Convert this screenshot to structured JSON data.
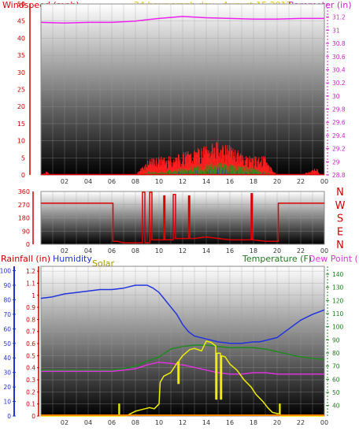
{
  "colors": {
    "wind": "#dd0000",
    "gust": "#ff2020",
    "wind_avg": "#1a9a1a",
    "wind_low": "#2020cc",
    "barometer": "#ee22ee",
    "title": "#e8c800",
    "direction": "#dd0000",
    "humidity": "#2233dd",
    "temperature": "#1f8a1f",
    "dewpoint": "#dd33dd",
    "solar": "#eeee00",
    "rainfall": "#cc0000",
    "rain_line": "#ff8800",
    "axis_blue": "#2233cc"
  },
  "chart_data": [
    {
      "type": "line",
      "title": "24 hour graph day - August 15 2017",
      "ylabel_left": "Windspeed (mph)",
      "ylabel_right": "Barometer (in)",
      "x_ticks": [
        "02",
        "04",
        "06",
        "08",
        "10",
        "12",
        "14",
        "16",
        "18",
        "20",
        "22",
        "00"
      ],
      "y_left_ticks": [
        "0",
        "5",
        "10",
        "15",
        "20",
        "25",
        "30",
        "35",
        "40",
        "45",
        "50"
      ],
      "y_left_range": [
        0,
        50
      ],
      "y_right_ticks": [
        "28.8",
        "29",
        "29.2",
        "29.4",
        "29.6",
        "29.8",
        "30",
        "30.2",
        "30.4",
        "30.6",
        "30.8",
        "31",
        "31.2"
      ],
      "y_right_range": [
        28.8,
        31.4
      ],
      "grid": true,
      "series": [
        {
          "key": "barometer",
          "x": [
            0,
            2,
            4,
            6,
            8,
            9,
            10,
            12,
            14,
            16,
            18,
            20,
            22,
            24
          ],
          "values": [
            31.12,
            31.11,
            31.12,
            31.12,
            31.14,
            31.16,
            31.18,
            31.21,
            31.19,
            31.18,
            31.17,
            31.17,
            31.18,
            31.18
          ]
        },
        {
          "key": "gust",
          "x": [
            0,
            0.5,
            0.8,
            1.2,
            2,
            6,
            8,
            8.5,
            9,
            10,
            11,
            12,
            13,
            14,
            15,
            16,
            17,
            18,
            19,
            19.5,
            20,
            22,
            23.4,
            23.6,
            24
          ],
          "values": [
            0,
            1,
            0,
            0,
            0,
            0,
            0,
            2,
            4,
            5,
            5,
            6,
            7,
            8,
            9,
            8,
            6,
            5,
            5,
            2,
            0,
            0,
            2,
            0,
            0
          ]
        },
        {
          "key": "wind_avg",
          "x": [
            0,
            8.5,
            9,
            10,
            11,
            12,
            13,
            14,
            15,
            16,
            17,
            18,
            19,
            19.5,
            20,
            24
          ],
          "values": [
            0,
            0,
            1,
            1,
            1.5,
            2,
            2.5,
            3,
            3.5,
            3,
            2.5,
            2,
            1,
            0.5,
            0,
            0
          ]
        }
      ]
    },
    {
      "type": "line",
      "ylabel_right": [
        "N",
        "W",
        "S",
        "E",
        "N"
      ],
      "y_ticks": [
        "0",
        "90",
        "180",
        "270",
        "360"
      ],
      "y_range": [
        0,
        360
      ],
      "x_ticks": [
        "02",
        "04",
        "06",
        "08",
        "10",
        "12",
        "14",
        "16",
        "18",
        "20",
        "22",
        "00"
      ],
      "grid": true,
      "series": [
        {
          "key": "direction",
          "x": [
            0,
            6.1,
            6.1,
            6.5,
            7,
            8,
            8.6,
            8.6,
            8.8,
            8.8,
            9.2,
            9.2,
            9.4,
            9.4,
            10,
            10.4,
            10.4,
            10.5,
            10.5,
            11,
            11.2,
            11.2,
            11.4,
            11.4,
            12,
            12.5,
            12.5,
            12.6,
            12.6,
            13,
            14,
            15,
            16,
            17,
            17.8,
            17.8,
            17.9,
            17.9,
            18,
            19,
            19.2,
            20,
            20.1,
            20.1,
            24
          ],
          "values": [
            280,
            280,
            20,
            20,
            10,
            10,
            10,
            355,
            355,
            10,
            10,
            355,
            355,
            30,
            30,
            30,
            330,
            330,
            30,
            30,
            30,
            340,
            340,
            40,
            40,
            40,
            330,
            330,
            40,
            40,
            50,
            40,
            30,
            30,
            30,
            345,
            345,
            30,
            30,
            20,
            20,
            20,
            20,
            280,
            280
          ]
        }
      ]
    },
    {
      "type": "line",
      "ylabel_left_1": "Rainfall (in)",
      "ylabel_left_2": "Humidity",
      "ylabel_left_3": "Solar",
      "ylabel_right_1": "Temperature (F)",
      "ylabel_right_2": "Dew Point (F)",
      "x_ticks": [
        "02",
        "04",
        "06",
        "08",
        "10",
        "12",
        "14",
        "16",
        "18",
        "20",
        "22",
        "00"
      ],
      "rain_ticks": [
        "0",
        "0.1",
        "0.2",
        "0.3",
        "0.4",
        "0.5",
        "0.6",
        "0.7",
        "0.8",
        "0.9",
        "1",
        "1.1",
        "1.2"
      ],
      "rain_range": [
        0,
        1.24
      ],
      "humidity_ticks": [
        "0",
        "10",
        "20",
        "30",
        "40",
        "50",
        "60",
        "70",
        "80",
        "90",
        "100"
      ],
      "humidity_range": [
        0,
        103
      ],
      "temp_ticks": [
        "40",
        "50",
        "60",
        "70",
        "80",
        "90",
        "100",
        "110",
        "120",
        "130",
        "140"
      ],
      "temp_range": [
        32,
        146
      ],
      "grid": true,
      "series": [
        {
          "key": "humidity",
          "axis": "humidity",
          "x": [
            0,
            1,
            2,
            3,
            4,
            5,
            6,
            7,
            7.5,
            8,
            9,
            9.5,
            10,
            10.5,
            11,
            11.5,
            12,
            12.5,
            13,
            14,
            15,
            16,
            17,
            18,
            18.5,
            19,
            20,
            21,
            22,
            23,
            24
          ],
          "values": [
            81,
            82,
            84,
            85,
            86,
            87,
            87,
            88,
            89,
            90,
            90,
            88,
            85,
            80,
            75,
            70,
            63,
            58,
            55,
            53,
            51,
            50,
            50,
            51,
            51,
            52,
            54,
            60,
            66,
            70,
            73
          ]
        },
        {
          "key": "temperature",
          "axis": "temp",
          "x": [
            0,
            2,
            4,
            6,
            7,
            8,
            9,
            10,
            10.5,
            11,
            11.5,
            12,
            13,
            14,
            15,
            16,
            17,
            18,
            19,
            20,
            21,
            22,
            23,
            24
          ],
          "values": [
            67,
            67,
            67,
            67,
            68,
            70,
            74,
            77,
            80,
            83,
            84,
            85,
            86,
            86,
            85,
            84,
            84,
            84,
            83,
            81,
            79,
            77,
            76,
            75
          ]
        },
        {
          "key": "dewpoint",
          "axis": "temp",
          "x": [
            0,
            2,
            4,
            6,
            7,
            8,
            9,
            9.5,
            10,
            11,
            12,
            13,
            14,
            15,
            16,
            17,
            18,
            19,
            20,
            22,
            24
          ],
          "values": [
            66,
            66,
            66,
            66,
            67,
            68,
            71,
            72,
            73,
            72,
            71,
            69,
            67,
            65,
            64,
            64,
            65,
            65,
            64,
            64,
            64
          ]
        },
        {
          "key": "solar",
          "axis": "rain",
          "x": [
            0,
            6.6,
            6.6,
            6.65,
            6.65,
            7.2,
            7.6,
            8,
            8.4,
            8.8,
            9.2,
            9.6,
            10,
            10.1,
            10.4,
            11,
            11.6,
            11.6,
            11.7,
            11.7,
            12,
            12.6,
            13,
            13.6,
            14,
            14.4,
            14.8,
            14.8,
            14.9,
            14.9,
            15.2,
            15.2,
            15.3,
            15.3,
            15.6,
            16,
            16.6,
            17.2,
            17.8,
            18.2,
            18.8,
            19.2,
            19.6,
            20,
            20.2,
            20.2,
            20.25,
            20.25,
            24
          ],
          "values": [
            0,
            0,
            0.1,
            0.1,
            0,
            0,
            0.02,
            0.04,
            0.05,
            0.06,
            0.07,
            0.06,
            0.1,
            0.28,
            0.33,
            0.36,
            0.45,
            0.27,
            0.27,
            0.46,
            0.5,
            0.55,
            0.56,
            0.54,
            0.62,
            0.61,
            0.58,
            0.14,
            0.14,
            0.52,
            0.52,
            0.14,
            0.14,
            0.5,
            0.49,
            0.43,
            0.38,
            0.3,
            0.24,
            0.18,
            0.12,
            0.07,
            0.03,
            0.02,
            0.02,
            0.1,
            0.1,
            0,
            0
          ]
        },
        {
          "key": "rainfall",
          "axis": "rain",
          "x": [
            0,
            24
          ],
          "values": [
            0,
            0
          ]
        }
      ]
    }
  ]
}
